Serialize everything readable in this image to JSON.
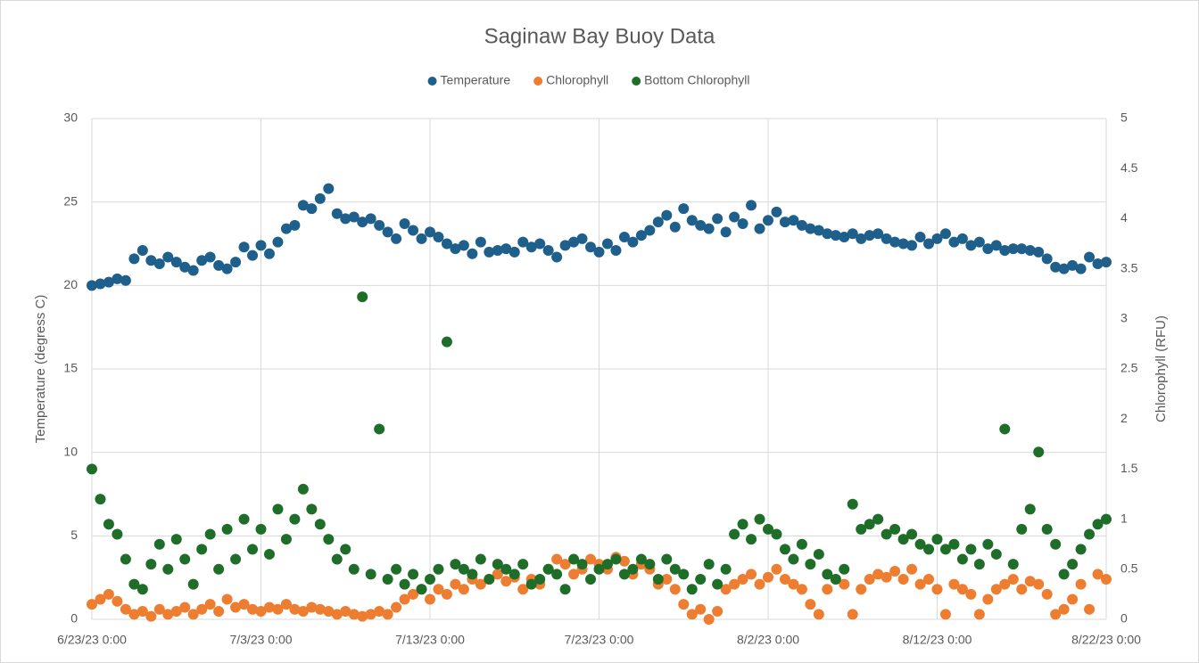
{
  "chart_data": {
    "type": "scatter",
    "title": "Saginaw Bay Buoy Data",
    "y_label": "Temperature (degress C)",
    "y2_label": "Chlorophyll (RFU)",
    "x": [
      45100,
      45100.5,
      45101,
      45101.5,
      45102,
      45102.5,
      45103,
      45103.5,
      45104,
      45104.5,
      45105,
      45105.5,
      45106,
      45106.5,
      45107,
      45107.5,
      45108,
      45108.5,
      45109,
      45109.5,
      45110,
      45110.5,
      45111,
      45111.5,
      45112,
      45112.5,
      45113,
      45113.5,
      45114,
      45114.5,
      45115,
      45115.5,
      45116,
      45116.5,
      45117,
      45117.5,
      45118,
      45118.5,
      45119,
      45119.5,
      45120,
      45120.5,
      45121,
      45121.5,
      45122,
      45122.5,
      45123,
      45123.5,
      45124,
      45124.5,
      45125,
      45125.5,
      45126,
      45126.5,
      45127,
      45127.5,
      45128,
      45128.5,
      45129,
      45129.5,
      45130,
      45130.5,
      45131,
      45131.5,
      45132,
      45132.5,
      45133,
      45133.5,
      45134,
      45134.5,
      45135,
      45135.5,
      45136,
      45136.5,
      45137,
      45137.5,
      45138,
      45138.5,
      45139,
      45139.5,
      45140,
      45140.5,
      45141,
      45141.5,
      45142,
      45142.5,
      45143,
      45143.5,
      45144,
      45144.5,
      45145,
      45145.5,
      45146,
      45146.5,
      45147,
      45147.5,
      45148,
      45148.5,
      45149,
      45149.5,
      45150,
      45150.5,
      45151,
      45151.5,
      45152,
      45152.5,
      45153,
      45153.5,
      45154,
      45154.5,
      45155,
      45155.5,
      45156,
      45156.5,
      45157,
      45157.5,
      45158,
      45158.5,
      45159,
      45159.5,
      45160
    ],
    "series": [
      {
        "name": "Temperature",
        "color": "#1f5f8b",
        "values": [
          20.0,
          20.1,
          20.2,
          20.4,
          20.3,
          21.6,
          22.1,
          21.5,
          21.3,
          21.7,
          21.4,
          21.1,
          20.9,
          21.5,
          21.7,
          21.2,
          21.0,
          21.4,
          22.3,
          21.8,
          22.4,
          21.9,
          22.6,
          23.4,
          23.6,
          24.8,
          24.6,
          25.2,
          25.8,
          24.3,
          24.0,
          24.1,
          23.8,
          24.0,
          23.6,
          23.2,
          22.8,
          23.7,
          23.3,
          22.8,
          23.2,
          22.9,
          22.5,
          22.2,
          22.4,
          21.9,
          22.6,
          22.0,
          22.1,
          22.2,
          22.0,
          22.6,
          22.3,
          22.5,
          22.1,
          21.7,
          22.4,
          22.6,
          22.8,
          22.3,
          22.0,
          22.5,
          22.1,
          22.9,
          22.6,
          23.0,
          23.3,
          23.8,
          24.2,
          23.5,
          24.6,
          23.9,
          23.6,
          23.4,
          24.0,
          23.2,
          24.1,
          23.7,
          24.8,
          23.4,
          23.9,
          24.4,
          23.8,
          23.9,
          23.6,
          23.4,
          23.3,
          23.1,
          23.0,
          22.9,
          23.1,
          22.8,
          23.0,
          23.1,
          22.8,
          22.6,
          22.5,
          22.4,
          22.9,
          22.5,
          22.8,
          23.1,
          22.6,
          22.8,
          22.4,
          22.6,
          22.2,
          22.4,
          22.1,
          22.2,
          22.2,
          22.1,
          22.0,
          21.6,
          21.1,
          21.0,
          21.2,
          21.0,
          21.7,
          21.3,
          21.4
        ]
      },
      {
        "name": "Chlorophyll",
        "color": "#ed7d31",
        "axis": "y2",
        "values": [
          0.15,
          0.2,
          0.25,
          0.18,
          0.1,
          0.05,
          0.08,
          0.03,
          0.1,
          0.05,
          0.08,
          0.12,
          0.05,
          0.1,
          0.15,
          0.08,
          0.2,
          0.12,
          0.15,
          0.1,
          0.08,
          0.12,
          0.1,
          0.15,
          0.1,
          0.08,
          0.12,
          0.1,
          0.08,
          0.05,
          0.08,
          0.05,
          0.03,
          0.05,
          0.08,
          0.05,
          0.12,
          0.2,
          0.25,
          0.3,
          0.2,
          0.3,
          0.25,
          0.35,
          0.3,
          0.4,
          0.35,
          0.4,
          0.45,
          0.38,
          0.42,
          0.3,
          0.4,
          0.35,
          0.5,
          0.6,
          0.55,
          0.45,
          0.5,
          0.6,
          0.55,
          0.5,
          0.62,
          0.58,
          0.45,
          0.55,
          0.5,
          0.35,
          0.4,
          0.3,
          0.15,
          0.05,
          0.1,
          0.0,
          0.08,
          0.3,
          0.35,
          0.4,
          0.45,
          0.35,
          0.42,
          0.5,
          0.4,
          0.35,
          0.3,
          0.15,
          0.05,
          0.3,
          0.4,
          0.35,
          0.05,
          0.3,
          0.4,
          0.45,
          0.42,
          0.48,
          0.4,
          0.5,
          0.35,
          0.4,
          0.3,
          0.05,
          0.35,
          0.3,
          0.25,
          0.05,
          0.2,
          0.3,
          0.35,
          0.4,
          0.3,
          0.38,
          0.35,
          0.25,
          0.05,
          0.1,
          0.2,
          0.35,
          0.1,
          0.45,
          0.4
        ]
      },
      {
        "name": "Bottom Chlorophyll",
        "color": "#1e6e2a",
        "axis": "y2",
        "values": [
          1.5,
          1.2,
          0.95,
          0.85,
          0.6,
          0.35,
          0.3,
          0.55,
          0.75,
          0.5,
          0.8,
          0.6,
          0.35,
          0.7,
          0.85,
          0.5,
          0.9,
          0.6,
          1.0,
          0.7,
          0.9,
          0.65,
          1.1,
          0.8,
          1.0,
          1.3,
          1.1,
          0.95,
          0.8,
          0.6,
          0.7,
          0.5,
          3.22,
          0.45,
          1.9,
          0.4,
          0.5,
          0.35,
          0.45,
          0.3,
          0.4,
          0.5,
          2.77,
          0.55,
          0.5,
          0.45,
          0.6,
          0.4,
          0.55,
          0.5,
          0.45,
          0.55,
          0.35,
          0.4,
          0.5,
          0.45,
          0.3,
          0.6,
          0.55,
          0.4,
          0.5,
          0.55,
          0.6,
          0.45,
          0.5,
          0.6,
          0.55,
          0.4,
          0.6,
          0.5,
          0.45,
          0.3,
          0.4,
          0.55,
          0.35,
          0.5,
          0.85,
          0.95,
          0.8,
          1.0,
          0.9,
          0.85,
          0.7,
          0.6,
          0.75,
          0.55,
          0.65,
          0.45,
          0.4,
          0.5,
          1.15,
          0.9,
          0.95,
          1.0,
          0.85,
          0.9,
          0.8,
          0.85,
          0.75,
          0.7,
          0.8,
          0.7,
          0.75,
          0.6,
          0.7,
          0.55,
          0.75,
          0.65,
          1.9,
          0.55,
          0.9,
          1.1,
          1.67,
          0.9,
          0.75,
          0.45,
          0.55,
          0.7,
          0.85,
          0.95,
          1.0
        ]
      }
    ],
    "xlim": [
      45100,
      45160
    ],
    "xticks": [
      {
        "value": 45100,
        "label": "6/23/23 0:00"
      },
      {
        "value": 45110,
        "label": "7/3/23 0:00"
      },
      {
        "value": 45120,
        "label": "7/13/23 0:00"
      },
      {
        "value": 45130,
        "label": "7/23/23 0:00"
      },
      {
        "value": 45140,
        "label": "8/2/23 0:00"
      },
      {
        "value": 45150,
        "label": "8/12/23 0:00"
      },
      {
        "value": 45160,
        "label": "8/22/23 0:00"
      }
    ],
    "ylim": [
      0,
      30
    ],
    "yticks": [
      0,
      5,
      10,
      15,
      20,
      25,
      30
    ],
    "y2lim": [
      0,
      5
    ],
    "y2ticks": [
      0,
      0.5,
      1,
      1.5,
      2,
      2.5,
      3,
      3.5,
      4,
      4.5,
      5
    ],
    "grid": true,
    "legend": "top"
  }
}
